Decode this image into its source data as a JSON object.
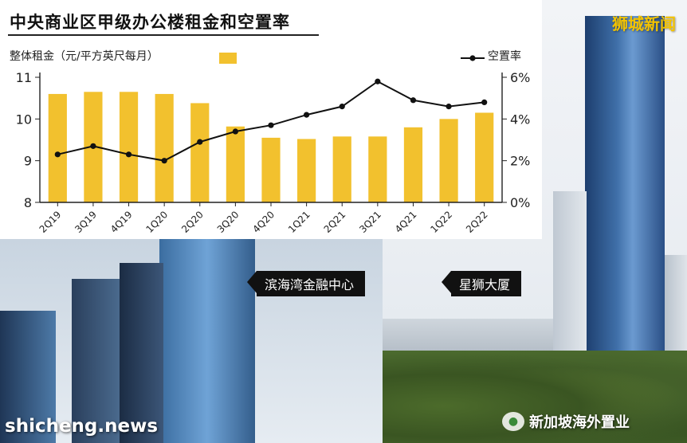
{
  "title": "中央商业区甲级办公楼租金和空置率",
  "legend": {
    "bar_label": "整体租金（元/平方英尺每月）",
    "line_label": "空置率"
  },
  "colors": {
    "bar": "#f2c12e",
    "line": "#111111",
    "accent": "#f3c300"
  },
  "buildings": {
    "left_label": "滨海湾金融中心",
    "right_label": "星狮大厦"
  },
  "watermarks": {
    "top": "狮城新闻",
    "bottom": "shicheng.news",
    "wechat": "新加坡海外置业"
  },
  "chart_data": {
    "type": "bar",
    "title": "中央商业区甲级办公楼租金和空置率",
    "categories": [
      "2Q19",
      "3Q19",
      "4Q19",
      "1Q20",
      "2Q20",
      "3Q20",
      "4Q20",
      "1Q21",
      "2Q21",
      "3Q21",
      "4Q21",
      "1Q22",
      "2Q22"
    ],
    "series": [
      {
        "name": "整体租金（元/平方英尺每月）",
        "type": "bar",
        "axis": "left",
        "values": [
          10.6,
          10.65,
          10.65,
          10.6,
          10.38,
          9.82,
          9.55,
          9.52,
          9.58,
          9.58,
          9.8,
          10.0,
          10.15
        ]
      },
      {
        "name": "空置率",
        "type": "line",
        "axis": "right",
        "unit": "%",
        "values": [
          2.3,
          2.7,
          2.3,
          2.0,
          2.9,
          3.4,
          3.7,
          4.2,
          4.6,
          5.8,
          4.9,
          4.6,
          4.8
        ]
      }
    ],
    "y_left": {
      "ylim": [
        8,
        11
      ],
      "ticks": [
        "8",
        "9",
        "10",
        "11"
      ]
    },
    "y_right": {
      "ylim": [
        0,
        6
      ],
      "ticks": [
        "0%",
        "2%",
        "4%",
        "6%"
      ]
    },
    "legend_position": "top",
    "grid": false
  }
}
